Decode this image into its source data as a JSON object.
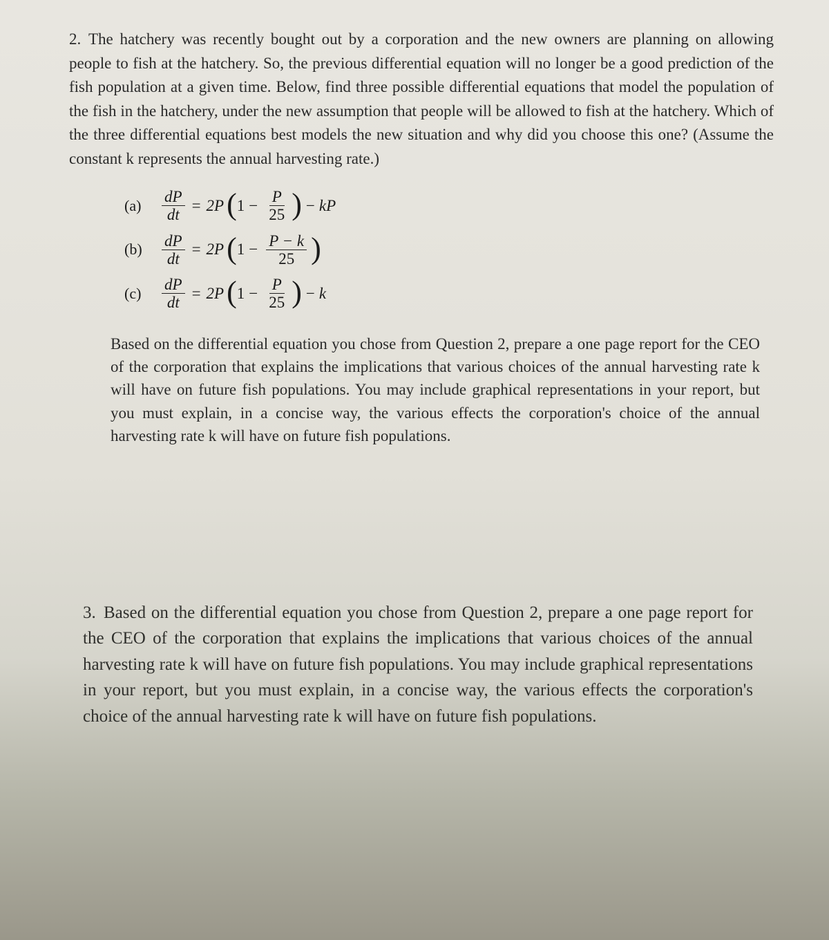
{
  "colors": {
    "text": "#1a1a1a",
    "paper_top": "#e8e6e0",
    "paper_mid": "#e2e0d8",
    "paper_bottom": "#9a978a",
    "rule": "#222222"
  },
  "typography": {
    "body_font": "Times New Roman / CMU Serif",
    "body_size_pt": 17,
    "line_height": 1.5
  },
  "question2": {
    "number": "2.",
    "text": "The hatchery was recently bought out by a corporation and the new owners are planning on allowing people to fish at the hatchery. So, the previous differential equation will no longer be a good prediction of the fish population at a given time. Below, find three possible differential equations that model the population of the fish in the hatchery, under the new assumption that people will be allowed to fish at the hatchery. Which of the three differential equations best models the new situation and why did you choose this one? (Assume the constant k represents the annual harvesting rate.)"
  },
  "equations": {
    "a": {
      "label": "(a)",
      "lhs_top": "dP",
      "lhs_bot": "dt",
      "eq": "=",
      "coef": "2P",
      "one": "1",
      "minus1": "−",
      "inner_top": "P",
      "inner_bot": "25",
      "minus2": "−",
      "tail": "kP"
    },
    "b": {
      "label": "(b)",
      "lhs_top": "dP",
      "lhs_bot": "dt",
      "eq": "=",
      "coef": "2P",
      "one": "1",
      "minus1": "−",
      "inner_top": "P − k",
      "inner_bot": "25"
    },
    "c": {
      "label": "(c)",
      "lhs_top": "dP",
      "lhs_bot": "dt",
      "eq": "=",
      "coef": "2P",
      "one": "1",
      "minus1": "−",
      "inner_top": "P",
      "inner_bot": "25",
      "minus2": "−",
      "tail": "k"
    }
  },
  "inset": {
    "text": "Based on the differential equation you chose from Question 2, prepare a one page report for the CEO of the corporation that explains the implications that various choices of the annual harvesting rate k will have on future fish populations. You may include graphical representations in your report, but you must explain, in a concise way, the various effects the corporation's choice of the annual harvesting rate k will have on future fish populations."
  },
  "question3": {
    "number": "3.",
    "text": "Based on the differential equation you chose from Question 2, prepare a one page report for the CEO of the corporation that explains the implications that various choices of the annual harvesting rate k will have on future fish populations. You may include graphical representations in your report, but you must explain, in a concise way, the various effects the corporation's choice of the annual harvesting rate k will have on future fish populations."
  }
}
